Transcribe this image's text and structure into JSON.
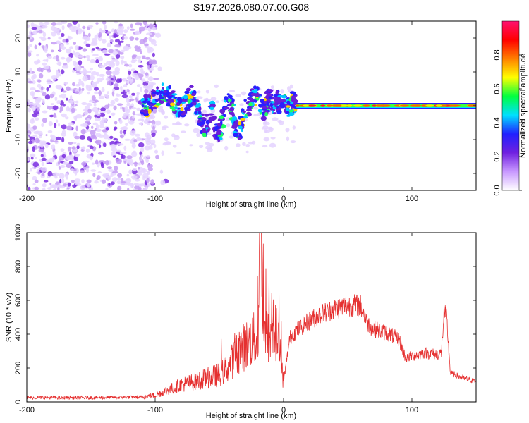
{
  "title": "S197.2026.080.07.00.G08",
  "colors": {
    "snr_line": "#e53030",
    "axis": "#000000"
  },
  "chart_data": [
    {
      "type": "heatmap",
      "name": "spectrogram",
      "xlabel": "Height of straight line (km)",
      "ylabel": "Frequency (Hz)",
      "xlim": [
        -200,
        150
      ],
      "ylim": [
        -25,
        25
      ],
      "xticks": [
        -200,
        -100,
        0,
        100
      ],
      "yticks": [
        -20,
        -10,
        0,
        10,
        20
      ],
      "colorbar": {
        "label": "Normalized spectral amplitude",
        "range": [
          0,
          1
        ],
        "ticks": [
          "0.0",
          "0.2",
          "0.4",
          "0.6",
          "0.8"
        ],
        "stops": [
          "#ffffff",
          "#c898ff",
          "#7020e0",
          "#2020ff",
          "#00e0ff",
          "#00ff40",
          "#ffff00",
          "#ff8000",
          "#ff0000",
          "#ff1070"
        ]
      },
      "features": {
        "noise_region_x": [
          -200,
          -100
        ],
        "signal_band_freq": 0,
        "signal_band_x": [
          10,
          150
        ],
        "scattered_signal_x": [
          -110,
          10
        ]
      }
    },
    {
      "type": "line",
      "name": "snr",
      "xlabel": "Height of straight line (km)",
      "ylabel": "SNR (10 * v/v)",
      "xlim": [
        -200,
        150
      ],
      "ylim": [
        0,
        1000
      ],
      "xticks": [
        -200,
        -100,
        0,
        100
      ],
      "yticks": [
        0,
        200,
        400,
        600,
        800,
        1000
      ],
      "series": [
        {
          "name": "SNR",
          "x": [
            -200,
            -150,
            -110,
            -100,
            -90,
            -80,
            -70,
            -60,
            -50,
            -45,
            -40,
            -35,
            -30,
            -25,
            -20,
            -18,
            -15,
            -10,
            -5,
            0,
            5,
            10,
            20,
            30,
            40,
            50,
            60,
            65,
            70,
            80,
            90,
            95,
            100,
            110,
            120,
            123,
            125,
            127,
            130,
            140,
            150
          ],
          "y": [
            25,
            25,
            28,
            40,
            70,
            100,
            120,
            140,
            160,
            190,
            240,
            300,
            330,
            360,
            380,
            1000,
            380,
            400,
            390,
            120,
            380,
            420,
            480,
            520,
            550,
            570,
            570,
            470,
            430,
            410,
            370,
            260,
            270,
            290,
            280,
            290,
            520,
            500,
            170,
            140,
            120
          ]
        }
      ]
    }
  ]
}
